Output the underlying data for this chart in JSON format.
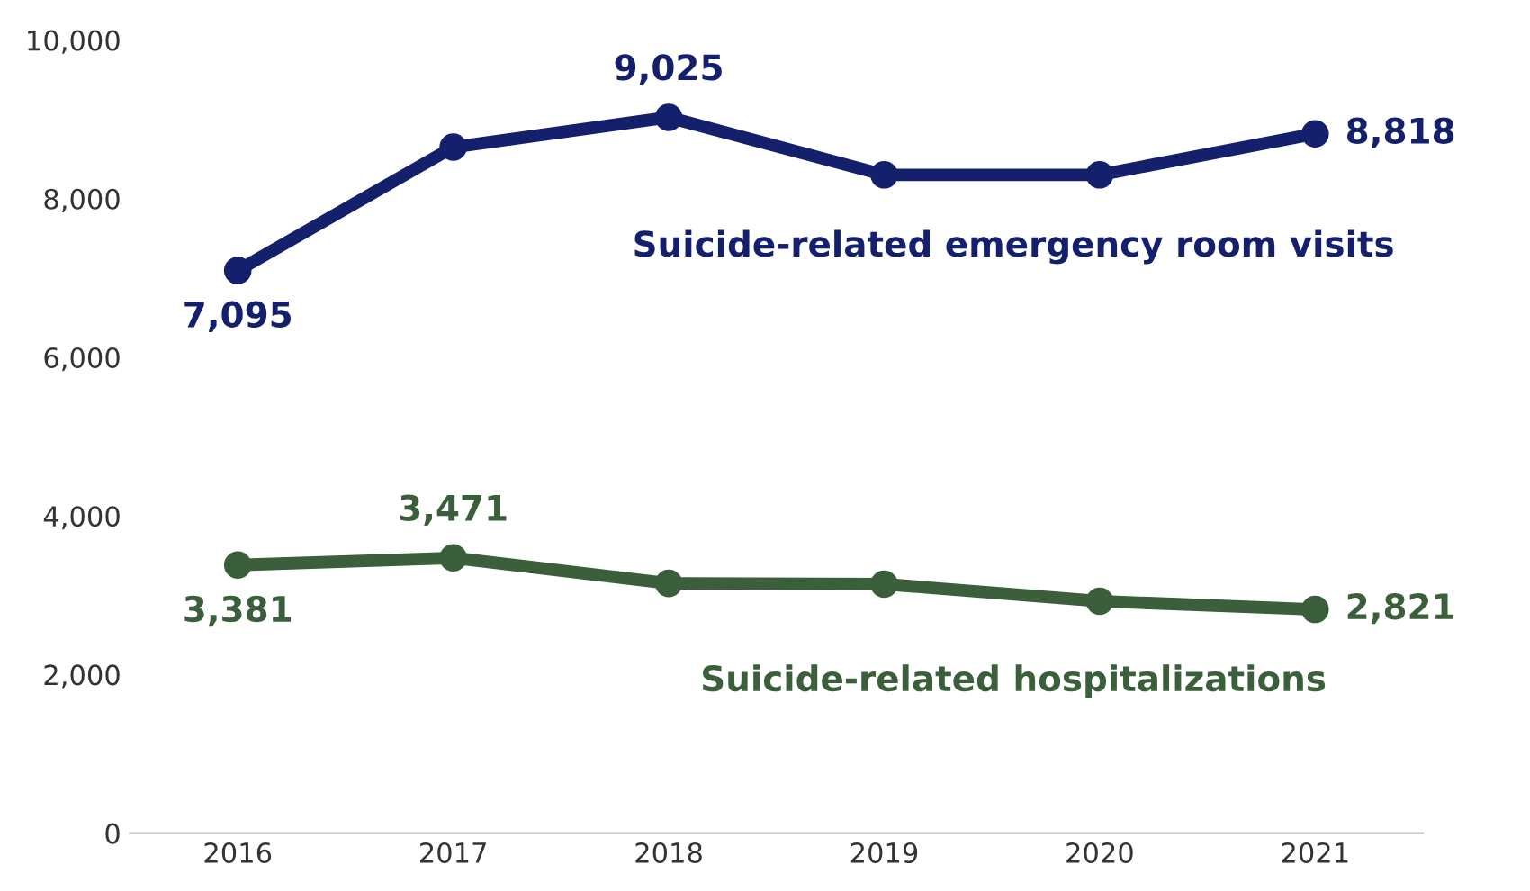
{
  "chart_data": {
    "type": "line",
    "categories": [
      "2016",
      "2017",
      "2018",
      "2019",
      "2020",
      "2021"
    ],
    "series": [
      {
        "name": "Suicide-related emergency room visits",
        "color": "#14206b",
        "values": [
          7095,
          8650,
          9025,
          8300,
          8300,
          8818
        ],
        "value_labels": [
          "7,095",
          null,
          "9,025",
          null,
          null,
          "8,818"
        ]
      },
      {
        "name": "Suicide-related hospitalizations",
        "color": "#3b5e3b",
        "values": [
          3381,
          3471,
          3150,
          3140,
          2925,
          2821
        ],
        "value_labels": [
          "3,381",
          "3,471",
          null,
          null,
          null,
          "2,821"
        ]
      }
    ],
    "ylim": [
      0,
      10000
    ],
    "yticks": [
      {
        "value": 0,
        "label": "0"
      },
      {
        "value": 2000,
        "label": "2,000"
      },
      {
        "value": 4000,
        "label": "4,000"
      },
      {
        "value": 6000,
        "label": "6,000"
      },
      {
        "value": 8000,
        "label": "8,000"
      },
      {
        "value": 10000,
        "label": "10,000"
      }
    ],
    "grid": false,
    "legend": false,
    "marker": "circle",
    "line_style": "solid"
  }
}
